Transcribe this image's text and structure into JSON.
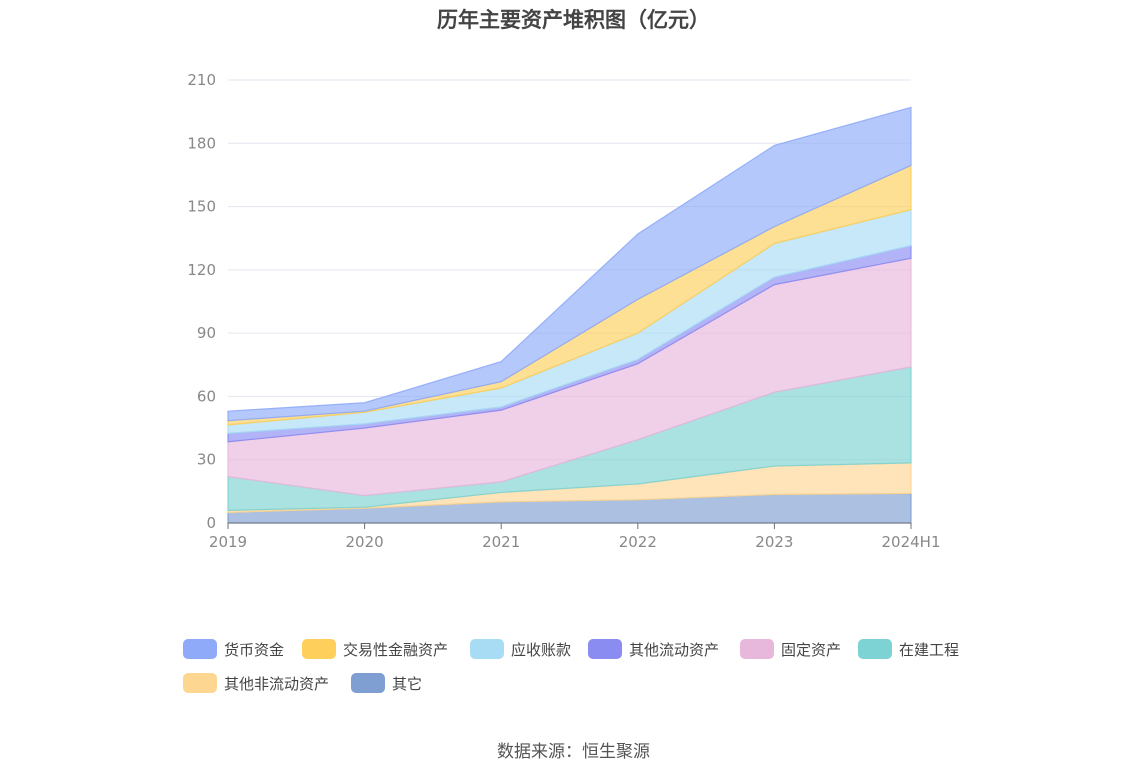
{
  "title": "历年主要资产堆积图（亿元）",
  "source": "数据来源：恒生聚源",
  "chart_data": {
    "type": "area",
    "stacked": true,
    "title": "历年主要资产堆积图（亿元）",
    "categories": [
      "2019",
      "2020",
      "2021",
      "2022",
      "2023",
      "2024H1"
    ],
    "ylim": [
      0,
      210
    ],
    "yticks": [
      0,
      30,
      60,
      90,
      120,
      150,
      180,
      210
    ],
    "grid": true,
    "legend_position": "bottom",
    "series": [
      {
        "name": "其它",
        "color": "#7f9fd3",
        "values": [
          5,
          7,
          10,
          11,
          13.5,
          14
        ]
      },
      {
        "name": "其他非流动资产",
        "color": "#fdd692",
        "values": [
          1,
          0.5,
          4.5,
          7.5,
          13.5,
          14.5
        ]
      },
      {
        "name": "在建工程",
        "color": "#7dd3d3",
        "values": [
          16,
          5.5,
          5,
          21,
          35,
          45.5
        ]
      },
      {
        "name": "固定资产",
        "color": "#e8b7dc",
        "values": [
          16.5,
          32,
          34,
          36,
          51,
          51.5
        ]
      },
      {
        "name": "其他流动资产",
        "color": "#8a8cf2",
        "values": [
          4,
          2,
          1.5,
          2,
          3.5,
          6
        ]
      },
      {
        "name": "应收账款",
        "color": "#a8dcf5",
        "values": [
          4,
          5.5,
          9,
          12.5,
          16,
          17
        ]
      },
      {
        "name": "交易性金融资产",
        "color": "#fecf5a",
        "values": [
          2,
          0.5,
          3,
          16,
          8,
          21
        ]
      },
      {
        "name": "货币资金",
        "color": "#8eaaf9",
        "values": [
          4.5,
          4,
          9.5,
          31,
          38.5,
          27.5
        ]
      }
    ],
    "legend": [
      "货币资金",
      "交易性金融资产",
      "应收账款",
      "其他流动资产",
      "固定资产",
      "在建工程",
      "其他非流动资产",
      "其它"
    ]
  }
}
